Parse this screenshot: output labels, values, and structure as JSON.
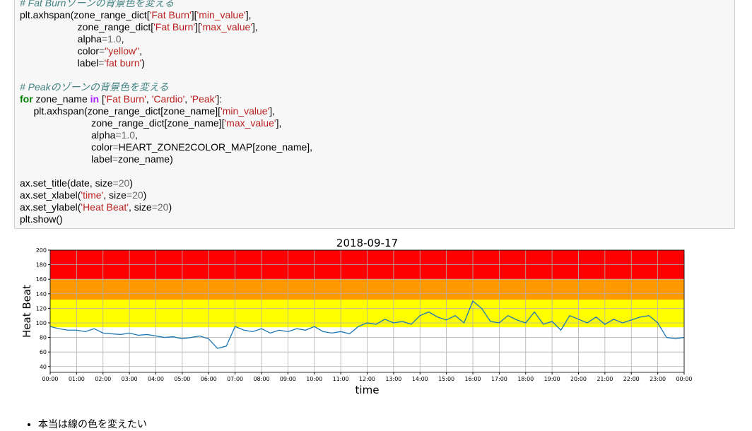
{
  "code": {
    "token_styles": {
      "n": "#000000",
      "s": "#ba2121",
      "c": "#408080",
      "k": "#008000",
      "o": "#aa22ff",
      "m": "#666666"
    },
    "lines": [
      [
        [
          "# Fat Burnゾーンの背景色を変える",
          "c"
        ]
      ],
      [
        [
          "plt.axhspan(zone_range_dict[",
          "n"
        ],
        [
          "'Fat Burn'",
          "s"
        ],
        [
          "][",
          "n"
        ],
        [
          "'min_value'",
          "s"
        ],
        [
          "],",
          "n"
        ]
      ],
      [
        [
          "                     zone_range_dict[",
          "n"
        ],
        [
          "'Fat Burn'",
          "s"
        ],
        [
          "][",
          "n"
        ],
        [
          "'max_value'",
          "s"
        ],
        [
          "],",
          "n"
        ]
      ],
      [
        [
          "                     alpha",
          "n"
        ],
        [
          "=",
          "m"
        ],
        [
          "1.0",
          "m"
        ],
        [
          ",",
          "n"
        ]
      ],
      [
        [
          "                     color",
          "n"
        ],
        [
          "=",
          "m"
        ],
        [
          "\"yellow\"",
          "s"
        ],
        [
          ",",
          "n"
        ]
      ],
      [
        [
          "                     label",
          "n"
        ],
        [
          "=",
          "m"
        ],
        [
          "'fat burn'",
          "s"
        ],
        [
          ")",
          "n"
        ]
      ],
      [],
      [
        [
          "# Peakのゾーンの背景色を変える",
          "c"
        ]
      ],
      [
        [
          "for",
          "k"
        ],
        [
          " zone_name ",
          "n"
        ],
        [
          "in",
          "o"
        ],
        [
          " [",
          "n"
        ],
        [
          "'Fat Burn'",
          "s"
        ],
        [
          ", ",
          "n"
        ],
        [
          "'Cardio'",
          "s"
        ],
        [
          ", ",
          "n"
        ],
        [
          "'Peak'",
          "s"
        ],
        [
          "]:",
          "n"
        ]
      ],
      [
        [
          "     plt.axhspan(zone_range_dict[zone_name][",
          "n"
        ],
        [
          "'min_value'",
          "s"
        ],
        [
          "],",
          "n"
        ]
      ],
      [
        [
          "                          zone_range_dict[zone_name][",
          "n"
        ],
        [
          "'max_value'",
          "s"
        ],
        [
          "],",
          "n"
        ]
      ],
      [
        [
          "                          alpha",
          "n"
        ],
        [
          "=",
          "m"
        ],
        [
          "1.0",
          "m"
        ],
        [
          ",",
          "n"
        ]
      ],
      [
        [
          "                          color",
          "n"
        ],
        [
          "=",
          "m"
        ],
        [
          "HEART_ZONE2COLOR_MAP[zone_name],",
          "n"
        ]
      ],
      [
        [
          "                          label",
          "n"
        ],
        [
          "=",
          "m"
        ],
        [
          "zone_name)",
          "n"
        ]
      ],
      [],
      [
        [
          "ax.set_title(date, size",
          "n"
        ],
        [
          "=",
          "m"
        ],
        [
          "20",
          "m"
        ],
        [
          ")",
          "n"
        ]
      ],
      [
        [
          "ax.set_xlabel(",
          "n"
        ],
        [
          "'time'",
          "s"
        ],
        [
          ", size",
          "n"
        ],
        [
          "=",
          "m"
        ],
        [
          "20",
          "m"
        ],
        [
          ")",
          "n"
        ]
      ],
      [
        [
          "ax.set_ylabel(",
          "n"
        ],
        [
          "'Heat Beat'",
          "s"
        ],
        [
          ", size",
          "n"
        ],
        [
          "=",
          "m"
        ],
        [
          "20",
          "m"
        ],
        [
          ")",
          "n"
        ]
      ],
      [
        [
          "plt.show()",
          "n"
        ]
      ]
    ]
  },
  "chart_data": {
    "type": "line",
    "title": "2018-09-17",
    "xlabel": "time",
    "ylabel": "Heat Beat",
    "xlim": [
      0,
      1440
    ],
    "ylim": [
      32,
      200
    ],
    "grid": true,
    "xticks": [
      {
        "value": 0,
        "label": "00:00"
      },
      {
        "value": 60,
        "label": "01:00"
      },
      {
        "value": 120,
        "label": "02:00"
      },
      {
        "value": 180,
        "label": "03:00"
      },
      {
        "value": 240,
        "label": "04:00"
      },
      {
        "value": 300,
        "label": "05:00"
      },
      {
        "value": 360,
        "label": "06:00"
      },
      {
        "value": 420,
        "label": "07:00"
      },
      {
        "value": 480,
        "label": "08:00"
      },
      {
        "value": 540,
        "label": "09:00"
      },
      {
        "value": 600,
        "label": "10:00"
      },
      {
        "value": 660,
        "label": "11:00"
      },
      {
        "value": 720,
        "label": "12:00"
      },
      {
        "value": 780,
        "label": "13:00"
      },
      {
        "value": 840,
        "label": "14:00"
      },
      {
        "value": 900,
        "label": "15:00"
      },
      {
        "value": 960,
        "label": "16:00"
      },
      {
        "value": 1020,
        "label": "17:00"
      },
      {
        "value": 1080,
        "label": "18:00"
      },
      {
        "value": 1140,
        "label": "19:00"
      },
      {
        "value": 1200,
        "label": "20:00"
      },
      {
        "value": 1260,
        "label": "21:00"
      },
      {
        "value": 1320,
        "label": "22:00"
      },
      {
        "value": 1380,
        "label": "23:00"
      },
      {
        "value": 1440,
        "label": "00:00"
      }
    ],
    "yticks": [
      40,
      60,
      80,
      100,
      120,
      140,
      160,
      180,
      200
    ],
    "bands": [
      {
        "min": 94,
        "max": 132,
        "color": "#ffff00"
      },
      {
        "min": 132,
        "max": 160,
        "color": "#ff9900"
      },
      {
        "min": 160,
        "max": 200,
        "color": "#ff0000"
      }
    ],
    "x": [
      0,
      20,
      40,
      60,
      80,
      100,
      120,
      140,
      160,
      180,
      200,
      220,
      240,
      260,
      280,
      300,
      320,
      340,
      360,
      380,
      400,
      420,
      440,
      460,
      480,
      500,
      520,
      540,
      560,
      580,
      600,
      620,
      640,
      660,
      680,
      700,
      720,
      740,
      760,
      780,
      800,
      820,
      840,
      860,
      880,
      900,
      920,
      940,
      960,
      980,
      1000,
      1020,
      1040,
      1060,
      1080,
      1100,
      1120,
      1140,
      1160,
      1180,
      1200,
      1220,
      1240,
      1260,
      1280,
      1300,
      1320,
      1340,
      1360,
      1380,
      1400,
      1420,
      1440
    ],
    "series": [
      {
        "color": "#1f77b4",
        "values": [
          95,
          92,
          90,
          90,
          88,
          92,
          86,
          85,
          84,
          86,
          83,
          84,
          82,
          80,
          81,
          78,
          80,
          82,
          78,
          65,
          68,
          95,
          90,
          88,
          92,
          86,
          90,
          88,
          92,
          90,
          95,
          88,
          86,
          88,
          85,
          95,
          100,
          98,
          105,
          100,
          102,
          98,
          110,
          115,
          108,
          104,
          110,
          100,
          130,
          120,
          102,
          100,
          110,
          104,
          100,
          115,
          98,
          102,
          90,
          110,
          105,
          100,
          108,
          98,
          105,
          100,
          104,
          108,
          110,
          100,
          80,
          78,
          80
        ]
      }
    ]
  },
  "notes": {
    "bullets": [
      "本当は線の色を変えたい"
    ]
  }
}
